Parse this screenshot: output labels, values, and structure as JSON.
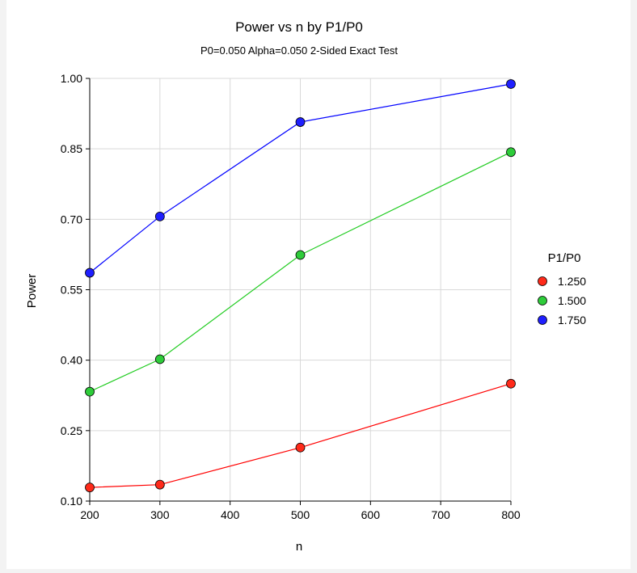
{
  "chart_data": {
    "type": "line",
    "title": "Power vs n by P1/P0",
    "subtitle": "P0=0.050 Alpha=0.050 2-Sided Exact Test",
    "xlabel": "n",
    "ylabel": "Power",
    "xlim": [
      200,
      800
    ],
    "ylim": [
      0.1,
      1.0
    ],
    "xticks": [
      "200",
      "300",
      "400",
      "500",
      "600",
      "700",
      "800"
    ],
    "xtick_values": [
      200,
      300,
      400,
      500,
      600,
      700,
      800
    ],
    "yticks": [
      "0.10",
      "0.25",
      "0.40",
      "0.55",
      "0.70",
      "0.85",
      "1.00"
    ],
    "ytick_values": [
      0.1,
      0.25,
      0.4,
      0.55,
      0.7,
      0.85,
      1.0
    ],
    "grid": true,
    "legend": {
      "title": "P1/P0",
      "placement": "right"
    },
    "x": [
      200,
      300,
      500,
      800
    ],
    "series": [
      {
        "name": "1.250",
        "color": "#ff2a1a",
        "line_color": "#ff0000",
        "values": [
          0.129,
          0.135,
          0.214,
          0.35
        ]
      },
      {
        "name": "1.500",
        "color": "#2ecc3a",
        "line_color": "#22cc22",
        "values": [
          0.333,
          0.402,
          0.624,
          0.843
        ]
      },
      {
        "name": "1.750",
        "color": "#1f1fff",
        "line_color": "#0000ff",
        "values": [
          0.586,
          0.706,
          0.907,
          0.988
        ]
      }
    ]
  }
}
